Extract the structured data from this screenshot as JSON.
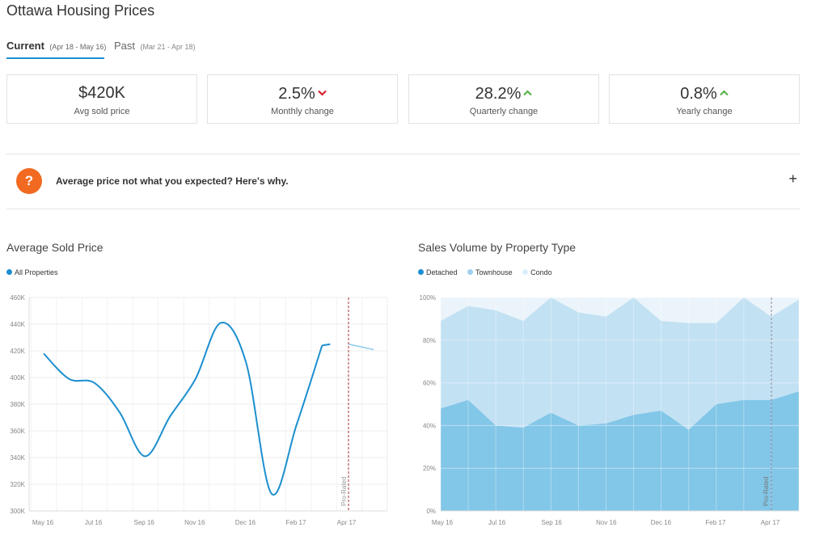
{
  "page": {
    "title": "Ottawa Housing Prices"
  },
  "tabs": [
    {
      "label": "Current",
      "range": "(Apr 18 - May 16)",
      "active": true
    },
    {
      "label": "Past",
      "range": "(Mar 21 - Apr 18)",
      "active": false
    }
  ],
  "stats": [
    {
      "value": "$420K",
      "label": "Avg sold price",
      "trend": ""
    },
    {
      "value": "2.5%",
      "label": "Monthly change",
      "trend": "down"
    },
    {
      "value": "28.2%",
      "label": "Quarterly change",
      "trend": "up"
    },
    {
      "value": "0.8%",
      "label": "Yearly change",
      "trend": "up"
    }
  ],
  "faq": {
    "icon": "question-icon",
    "icon_glyph": "?",
    "text": "Average price not what you expected? Here's why.",
    "toggle": "+"
  },
  "colors": {
    "accent": "#1c8fcf",
    "down": "#d6202a",
    "up": "#59b24a",
    "faq_icon": "#f26a22",
    "detached": "#82c6e8",
    "townhouse": "#c2e1f3",
    "condo": "#eaf4fa",
    "prorated_line": "#a83232"
  },
  "chart_data": [
    {
      "type": "line",
      "title": "Average Sold Price",
      "series": [
        {
          "name": "All Properties",
          "x": [
            "May 16",
            "Jun 16",
            "Jul 16",
            "Aug 16",
            "Sep 16",
            "Oct 16",
            "Nov 16",
            "Dec 16",
            "Jan 17",
            "Feb 17",
            "Mar 17",
            "Apr 17",
            "May 17"
          ],
          "values": [
            418,
            399,
            396,
            374,
            341,
            371,
            399,
            441,
            411,
            313,
            365,
            424,
            425
          ]
        }
      ],
      "projection": {
        "x": [
          "Apr 17",
          "May 17"
        ],
        "values": [
          425,
          421
        ]
      },
      "xticks": [
        "May 16",
        "Jul 16",
        "Sep 16",
        "Nov 16",
        "Dec 16",
        "Feb 17",
        "Apr 17"
      ],
      "yticks": [
        "300K",
        "320K",
        "340K",
        "360K",
        "380K",
        "400K",
        "420K",
        "440K",
        "460K"
      ],
      "ylim": [
        300,
        460
      ],
      "annotation": "Pro-Rated",
      "grid": true,
      "legend": "top-left"
    },
    {
      "type": "area",
      "title": "Sales Volume by Property Type",
      "categories": [
        "May 16",
        "Jun 16",
        "Jul 16",
        "Aug 16",
        "Sep 16",
        "Oct 16",
        "Nov 16",
        "Dec 16",
        "Jan 17",
        "Feb 17",
        "Mar 17",
        "Apr 17",
        "May 17",
        "Jun 17"
      ],
      "series": [
        {
          "name": "Detached",
          "values": [
            48,
            52,
            40,
            39,
            46,
            40,
            41,
            45,
            47,
            38,
            50,
            52,
            52,
            56
          ]
        },
        {
          "name": "Townhouse",
          "values": [
            41,
            44,
            54,
            50,
            54,
            53,
            50,
            55,
            42,
            50,
            38,
            48,
            39,
            43
          ]
        },
        {
          "name": "Condo",
          "values": [
            11,
            4,
            6,
            11,
            0,
            7,
            9,
            0,
            11,
            12,
            12,
            0,
            9,
            1
          ]
        }
      ],
      "xticks": [
        "May 16",
        "Jul 16",
        "Sep 16",
        "Nov 16",
        "Dec 16",
        "Feb 17",
        "Apr 17"
      ],
      "yticks": [
        "0%",
        "20%",
        "40%",
        "60%",
        "80%",
        "100%"
      ],
      "ylim": [
        0,
        100
      ],
      "annotation": "Pro-Rated",
      "grid": true,
      "legend": "top-left"
    }
  ]
}
